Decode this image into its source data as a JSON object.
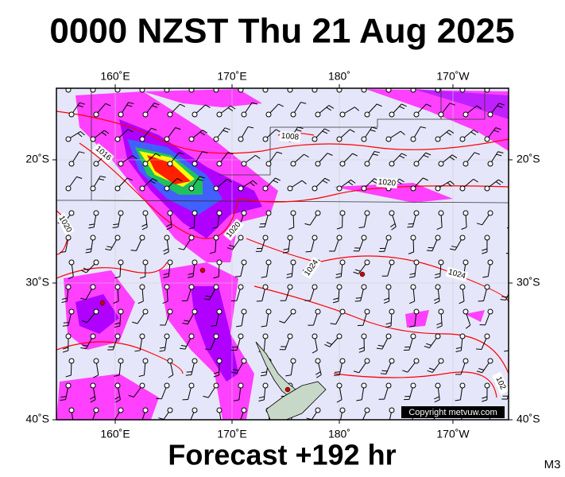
{
  "header": {
    "title": "0000 NZST Thu 21 Aug 2025"
  },
  "footer": {
    "forecast": "Forecast +192 hr",
    "tag": "M3"
  },
  "map": {
    "copyright": "Copyright metvuw.com",
    "lon_labels": [
      "160˚E",
      "170˚E",
      "180˚",
      "170˚W"
    ],
    "lat_labels": [
      "20˚S",
      "30˚S",
      "40˚S"
    ],
    "isobar_labels": [
      "1016",
      "1008",
      "1020",
      "1020",
      "1024",
      "1024",
      "1020",
      "102"
    ]
  }
}
